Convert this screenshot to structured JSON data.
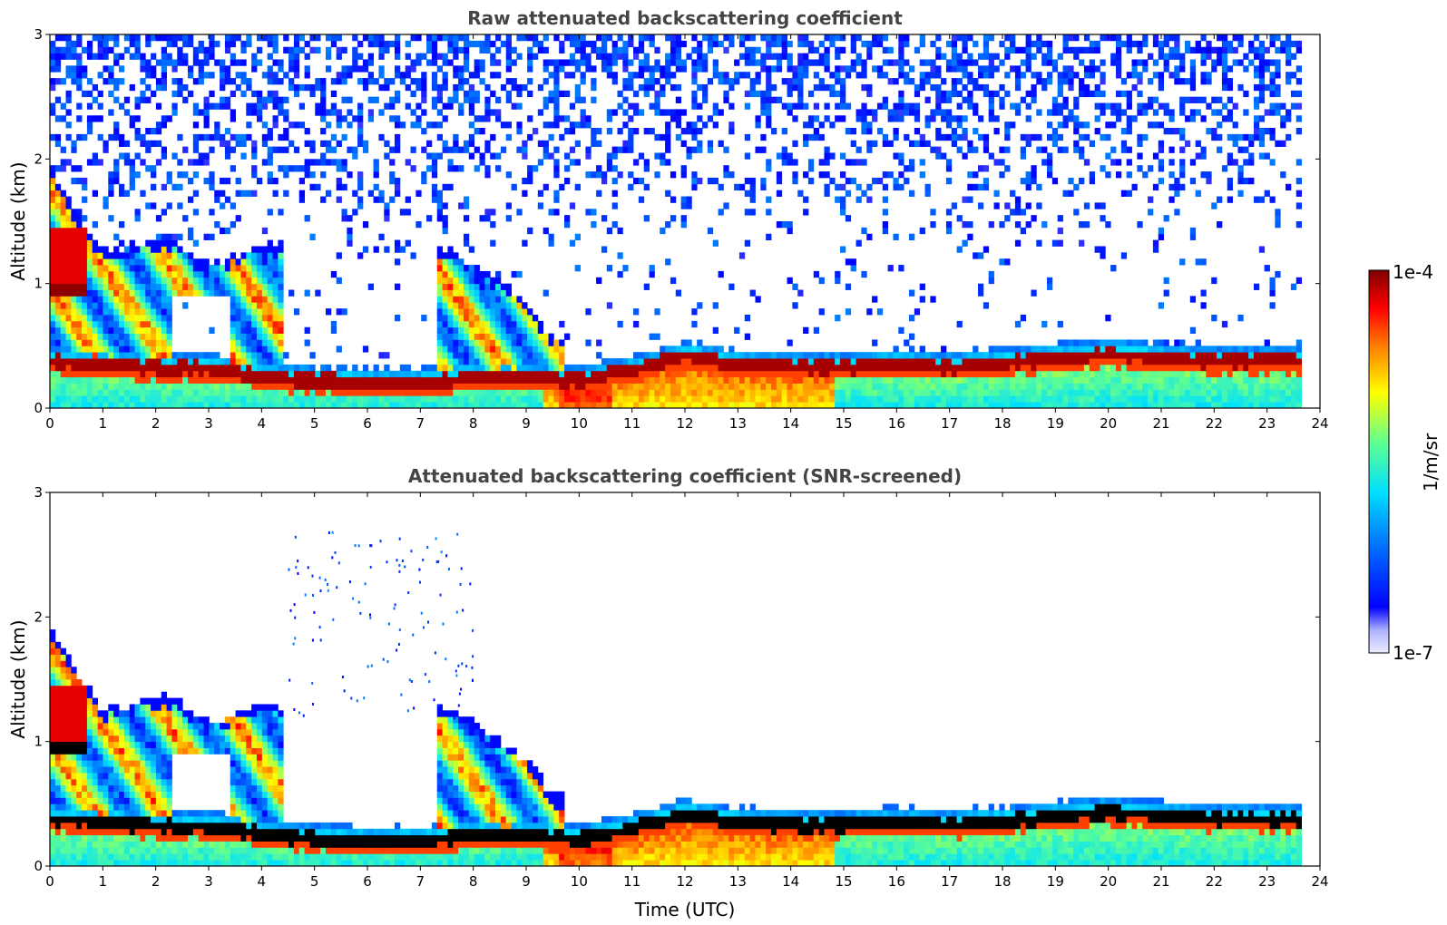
{
  "chart_data": [
    {
      "type": "heatmap",
      "title": "Raw attenuated backscattering coefficient",
      "xlabel": "",
      "ylabel": "Altitude (km)",
      "xlim": [
        0,
        24
      ],
      "ylim": [
        0,
        3
      ],
      "x_ticks": [
        "0",
        "1",
        "2",
        "3",
        "4",
        "5",
        "6",
        "7",
        "8",
        "9",
        "10",
        "11",
        "12",
        "13",
        "14",
        "15",
        "16",
        "17",
        "18",
        "19",
        "20",
        "21",
        "22",
        "23",
        "24"
      ],
      "y_ticks": [
        "0",
        "1",
        "2",
        "3"
      ],
      "data_end_time": 23.65,
      "screened": false,
      "features": {
        "boundary_layer_top_km": [
          [
            0,
            0.38
          ],
          [
            1,
            0.35
          ],
          [
            2,
            0.32
          ],
          [
            3,
            0.32
          ],
          [
            4,
            0.26
          ],
          [
            5,
            0.22
          ],
          [
            6,
            0.2
          ],
          [
            7,
            0.2
          ],
          [
            8,
            0.25
          ],
          [
            9,
            0.25
          ],
          [
            10,
            0.22
          ],
          [
            11,
            0.3
          ],
          [
            12,
            0.42
          ],
          [
            13,
            0.35
          ],
          [
            14,
            0.33
          ],
          [
            15,
            0.33
          ],
          [
            16,
            0.35
          ],
          [
            17,
            0.33
          ],
          [
            18,
            0.36
          ],
          [
            19,
            0.4
          ],
          [
            20,
            0.44
          ],
          [
            21,
            0.4
          ],
          [
            22,
            0.38
          ],
          [
            23,
            0.38
          ],
          [
            23.65,
            0.38
          ]
        ],
        "residual_layer_top_km": [
          [
            0,
            1.85
          ],
          [
            0.5,
            1.5
          ],
          [
            1,
            1.2
          ],
          [
            2.2,
            1.3
          ],
          [
            3,
            1.1
          ],
          [
            4,
            1.25
          ],
          [
            5,
            1.2
          ],
          [
            6,
            1.25
          ],
          [
            7,
            1.3
          ],
          [
            7.5,
            1.2
          ],
          [
            8,
            1.1
          ],
          [
            9,
            0.8
          ],
          [
            9.5,
            0.5
          ]
        ]
      }
    },
    {
      "type": "heatmap",
      "title": "Attenuated backscattering coefficient (SNR-screened)",
      "xlabel": "Time (UTC)",
      "ylabel": "Altitude (km)",
      "xlim": [
        0,
        24
      ],
      "ylim": [
        0,
        3
      ],
      "x_ticks": [
        "0",
        "1",
        "2",
        "3",
        "4",
        "5",
        "6",
        "7",
        "8",
        "9",
        "10",
        "11",
        "12",
        "13",
        "14",
        "15",
        "16",
        "17",
        "18",
        "19",
        "20",
        "21",
        "22",
        "23",
        "24"
      ],
      "y_ticks": [
        "0",
        "1",
        "2",
        "3"
      ],
      "data_end_time": 23.65,
      "screened": true
    }
  ],
  "colorbar": {
    "max_label": "1e-4",
    "min_label": "1e-7",
    "unit_label": "1/m/sr",
    "colormap": "jet"
  }
}
